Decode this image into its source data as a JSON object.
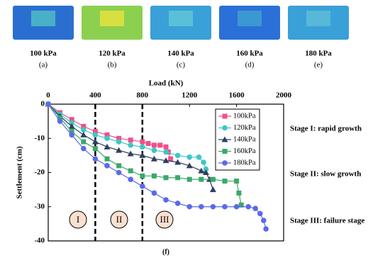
{
  "panels": [
    {
      "label": "100 kPa",
      "tag": "(a)",
      "color": "#2a6fd0",
      "inner": "#4ab0c8"
    },
    {
      "label": "120 kPa",
      "tag": "(b)",
      "color": "#8cd050",
      "inner": "#d8e040"
    },
    {
      "label": "140 kPa",
      "tag": "(c)",
      "color": "#3aa0d8",
      "inner": "#5ac0d8"
    },
    {
      "label": "160 kPa",
      "tag": "(d)",
      "color": "#2a70d8",
      "inner": "#3c98d0"
    },
    {
      "label": "180 kPa",
      "tag": "(e)",
      "color": "#3aa0d8",
      "inner": "#58b8d8"
    }
  ],
  "chart_data": {
    "type": "line",
    "xlabel": "Load (kN)",
    "ylabel": "Settlement (cm)",
    "xlim": [
      0,
      2000
    ],
    "xticks": [
      0,
      400,
      800,
      1200,
      1600,
      2000
    ],
    "ylim": [
      -40,
      0
    ],
    "yticks": [
      0,
      -10,
      -20,
      -30,
      -40
    ],
    "vlines": [
      400,
      800
    ],
    "legend": "upper right",
    "caption": "(f)",
    "regions": [
      "I",
      "II",
      "III"
    ],
    "stages": [
      "Stage I: rapid growth",
      "Stage II: slow growth",
      "Stage III: failure stage"
    ],
    "series": [
      {
        "name": "100kPa",
        "color": "#f0508a",
        "marker": "square",
        "x": [
          0,
          100,
          200,
          300,
          400,
          500,
          600,
          700,
          800,
          850,
          900,
          950,
          1000,
          1020,
          1040
        ],
        "values": [
          0,
          -2.5,
          -4.5,
          -6.5,
          -8,
          -9,
          -10,
          -10.5,
          -11,
          -11.5,
          -12,
          -12,
          -12.5,
          -14,
          -16
        ]
      },
      {
        "name": "120kPa",
        "color": "#3cc8c8",
        "marker": "circle",
        "x": [
          0,
          100,
          200,
          300,
          400,
          500,
          600,
          700,
          800,
          900,
          1000,
          1100,
          1200,
          1280,
          1320,
          1340
        ],
        "values": [
          0,
          -3,
          -5.5,
          -7.5,
          -9,
          -10,
          -11,
          -12,
          -12.5,
          -13.5,
          -14,
          -15,
          -15.5,
          -15.5,
          -17,
          -19
        ]
      },
      {
        "name": "140kPa",
        "color": "#2f3f5f",
        "marker": "triangle",
        "x": [
          0,
          100,
          200,
          300,
          400,
          500,
          600,
          700,
          800,
          900,
          1000,
          1100,
          1200,
          1300,
          1340,
          1370,
          1400
        ],
        "values": [
          0,
          -3.5,
          -6.5,
          -9,
          -11,
          -12.5,
          -13.5,
          -14.5,
          -15,
          -16,
          -16.5,
          -17,
          -18,
          -19.5,
          -20,
          -22,
          -25
        ]
      },
      {
        "name": "160kPa",
        "color": "#3aa86a",
        "marker": "square",
        "x": [
          0,
          100,
          200,
          300,
          400,
          500,
          600,
          700,
          800,
          900,
          1000,
          1100,
          1200,
          1300,
          1400,
          1500,
          1600,
          1620,
          1640
        ],
        "values": [
          0,
          -4,
          -8,
          -11,
          -13,
          -16,
          -18,
          -19.5,
          -21,
          -21,
          -21.5,
          -21.5,
          -22,
          -22,
          -22,
          -22.5,
          -22.5,
          -26,
          -29.5
        ]
      },
      {
        "name": "180kPa",
        "color": "#5a6ae8",
        "marker": "circle",
        "x": [
          0,
          100,
          200,
          300,
          400,
          500,
          600,
          700,
          800,
          900,
          1000,
          1100,
          1200,
          1300,
          1400,
          1500,
          1600,
          1700,
          1760,
          1800,
          1830,
          1850
        ],
        "values": [
          0,
          -5,
          -9,
          -13,
          -16,
          -18,
          -20,
          -22,
          -24,
          -26,
          -28,
          -29,
          -30,
          -30,
          -30,
          -30,
          -30,
          -30,
          -30.5,
          -32,
          -34,
          -36.5
        ]
      }
    ]
  }
}
